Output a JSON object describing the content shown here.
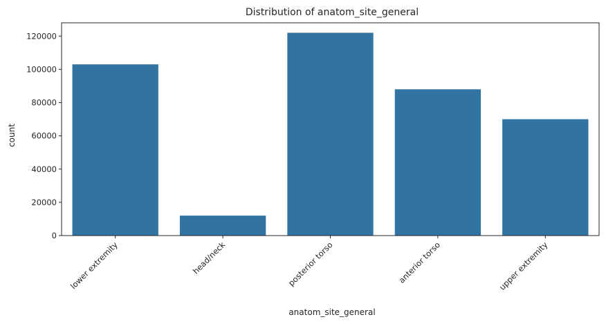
{
  "chart_data": {
    "type": "bar",
    "title": "Distribution of anatom_site_general",
    "xlabel": "anatom_site_general",
    "ylabel": "count",
    "categories": [
      "lower extremity",
      "head/neck",
      "posterior torso",
      "anterior torso",
      "upper extremity"
    ],
    "values": [
      103000,
      12000,
      122000,
      88000,
      70000
    ],
    "ylim": [
      0,
      128000
    ],
    "yticks": [
      0,
      20000,
      40000,
      60000,
      80000,
      100000,
      120000
    ],
    "bar_color": "#3274a1",
    "grid": false,
    "legend": "none"
  }
}
